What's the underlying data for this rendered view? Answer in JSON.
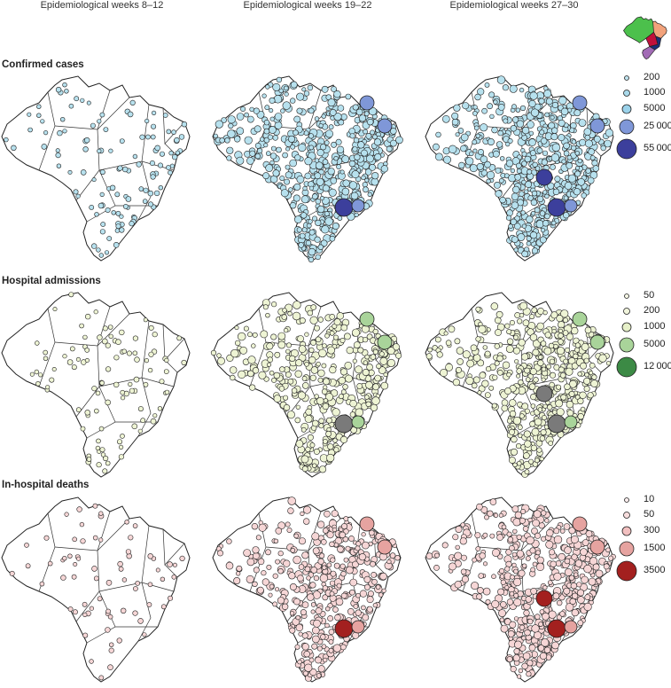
{
  "columns": [
    "Epidemiological weeks 8–12",
    "Epidemiological weeks 19–22",
    "Epidemiological weeks 27–30"
  ],
  "rows": [
    {
      "title": "Confirmed cases",
      "legend": [
        {
          "label": "200",
          "color": "#bfe3ee"
        },
        {
          "label": "1000",
          "color": "#a9d9ea"
        },
        {
          "label": "5000",
          "color": "#9bd2ea"
        },
        {
          "label": "25 000",
          "color": "#7f97d8"
        },
        {
          "label": "55 000",
          "color": "#3c3f9c"
        }
      ],
      "base_color": "#b7e1ee",
      "big_color": "#7f97d8",
      "max_color": "#3c3f9c",
      "density": [
        0.15,
        0.95,
        1.0
      ]
    },
    {
      "title": "Hospital admissions",
      "legend": [
        {
          "label": "50",
          "color": "#f7f8e6"
        },
        {
          "label": "200",
          "color": "#f1f5dc"
        },
        {
          "label": "1000",
          "color": "#e6f0c8"
        },
        {
          "label": "5000",
          "color": "#a9d49a"
        },
        {
          "label": "12 000",
          "color": "#3c8a45"
        }
      ],
      "base_color": "#eef4d4",
      "big_color": "#a9d49a",
      "max_color": "#7a7a7a",
      "density": [
        0.12,
        0.7,
        0.85
      ]
    },
    {
      "title": "In-hospital deaths",
      "legend": [
        {
          "label": "10",
          "color": "#fbeeee"
        },
        {
          "label": "50",
          "color": "#f7dddd"
        },
        {
          "label": "300",
          "color": "#f2c0c0"
        },
        {
          "label": "1500",
          "color": "#e6a3a0"
        },
        {
          "label": "3500",
          "color": "#a3201f"
        }
      ],
      "base_color": "#f6d6d6",
      "big_color": "#e6a3a0",
      "max_color": "#a3201f",
      "density": [
        0.06,
        0.7,
        0.85
      ]
    }
  ],
  "inset_map_regions": [
    {
      "region": "North",
      "color": "#4cc04c"
    },
    {
      "region": "Northeast",
      "color": "#f2a27b"
    },
    {
      "region": "Central-West",
      "color": "#c0103a"
    },
    {
      "region": "Southeast",
      "color": "#1a2f7a"
    },
    {
      "region": "South",
      "color": "#a26bb5"
    }
  ]
}
